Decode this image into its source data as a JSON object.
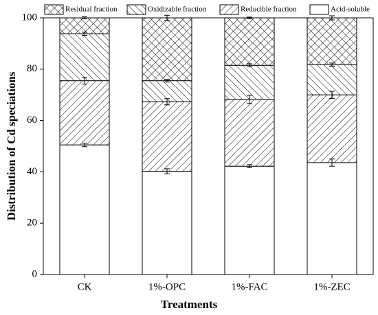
{
  "chart_data": {
    "type": "stacked_bar",
    "x_label": "Treatments",
    "y_label": "Distribution of Cd speciations",
    "categories": [
      "CK",
      "1%-OPC",
      "1%-FAC",
      "1%-ZEC"
    ],
    "series": [
      {
        "name": "Residual fraction",
        "hatch": "x",
        "values": [
          6.2,
          24.5,
          18.5,
          18.2
        ],
        "errors": [
          0.4,
          1.0,
          0.3,
          0.8
        ]
      },
      {
        "name": "Oxidizable fraction",
        "hatch": "\\",
        "values": [
          18.3,
          8.2,
          13.3,
          11.8
        ],
        "errors": [
          0.6,
          0.5,
          0.6,
          0.6
        ]
      },
      {
        "name": "Reducible fraction",
        "hatch": "/",
        "values": [
          25.0,
          27.1,
          26.0,
          26.4
        ],
        "errors": [
          1.3,
          1.2,
          1.6,
          1.4
        ]
      },
      {
        "name": "Acid-soluble",
        "values": [
          50.5,
          40.2,
          42.2,
          43.6
        ],
        "errors": [
          0.7,
          1.0,
          0.6,
          1.4
        ]
      }
    ],
    "ylim": [
      0,
      100
    ],
    "yticks": [
      0,
      20,
      40,
      60,
      80,
      100
    ]
  }
}
